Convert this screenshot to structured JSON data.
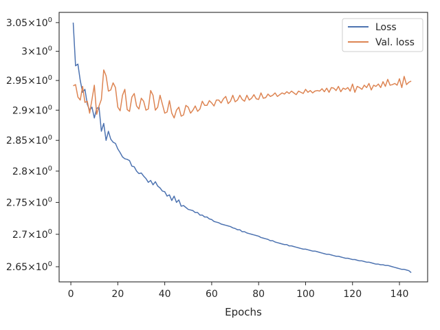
{
  "chart_data": {
    "type": "line",
    "title": "",
    "xlabel": "Epochs",
    "ylabel": "",
    "yscale": "log",
    "xlim": [
      -5,
      152
    ],
    "ylim": [
      2.627,
      3.068
    ],
    "grid": false,
    "legend_position": "top-right",
    "x_ticks": [
      0,
      20,
      40,
      60,
      80,
      100,
      120,
      140
    ],
    "x_tick_labels": [
      "0",
      "20",
      "40",
      "60",
      "80",
      "100",
      "120",
      "140"
    ],
    "y_ticks": [
      2.65,
      2.7,
      2.75,
      2.8,
      2.85,
      2.9,
      2.95,
      3.0,
      3.05
    ],
    "y_tick_mantissas": [
      "2.65",
      "2.7",
      "2.75",
      "2.8",
      "2.85",
      "2.9",
      "2.95",
      "3",
      "3.05"
    ],
    "y_tick_times": "×",
    "y_tick_base": "10",
    "y_tick_exponent": "0",
    "series": [
      {
        "name": "Loss",
        "color": "#4c72b0",
        "x_start": 1,
        "x_step": 1,
        "values": [
          3.05,
          2.975,
          2.978,
          2.95,
          2.93,
          2.935,
          2.91,
          2.9,
          2.905,
          2.887,
          2.903,
          2.905,
          2.865,
          2.878,
          2.85,
          2.865,
          2.852,
          2.847,
          2.845,
          2.836,
          2.83,
          2.823,
          2.82,
          2.819,
          2.817,
          2.808,
          2.807,
          2.8,
          2.796,
          2.797,
          2.792,
          2.788,
          2.782,
          2.785,
          2.778,
          2.783,
          2.776,
          2.773,
          2.768,
          2.767,
          2.76,
          2.762,
          2.753,
          2.76,
          2.75,
          2.754,
          2.744,
          2.745,
          2.742,
          2.739,
          2.738,
          2.737,
          2.734,
          2.734,
          2.73,
          2.73,
          2.727,
          2.727,
          2.724,
          2.723,
          2.72,
          2.719,
          2.718,
          2.716,
          2.715,
          2.714,
          2.713,
          2.712,
          2.71,
          2.709,
          2.707,
          2.707,
          2.704,
          2.704,
          2.702,
          2.701,
          2.7,
          2.699,
          2.698,
          2.697,
          2.695,
          2.694,
          2.693,
          2.692,
          2.69,
          2.69,
          2.688,
          2.687,
          2.686,
          2.685,
          2.684,
          2.684,
          2.682,
          2.682,
          2.681,
          2.68,
          2.679,
          2.678,
          2.677,
          2.677,
          2.676,
          2.675,
          2.674,
          2.674,
          2.673,
          2.672,
          2.671,
          2.67,
          2.669,
          2.669,
          2.668,
          2.667,
          2.666,
          2.666,
          2.665,
          2.664,
          2.663,
          2.663,
          2.662,
          2.661,
          2.661,
          2.66,
          2.659,
          2.659,
          2.658,
          2.657,
          2.657,
          2.656,
          2.655,
          2.654,
          2.654,
          2.653,
          2.653,
          2.652,
          2.652,
          2.651,
          2.65,
          2.649,
          2.648,
          2.647,
          2.646,
          2.646,
          2.645,
          2.644,
          2.641
        ]
      },
      {
        "name": "Val. loss",
        "color": "#dd8452",
        "x_start": 1,
        "x_step": 1,
        "values": [
          2.941,
          2.943,
          2.922,
          2.917,
          2.94,
          2.913,
          2.915,
          2.895,
          2.918,
          2.942,
          2.893,
          2.907,
          2.918,
          2.968,
          2.958,
          2.932,
          2.934,
          2.946,
          2.938,
          2.905,
          2.899,
          2.925,
          2.935,
          2.901,
          2.898,
          2.922,
          2.928,
          2.907,
          2.902,
          2.92,
          2.915,
          2.9,
          2.902,
          2.933,
          2.925,
          2.9,
          2.905,
          2.925,
          2.91,
          2.895,
          2.897,
          2.916,
          2.895,
          2.887,
          2.9,
          2.905,
          2.89,
          2.892,
          2.908,
          2.905,
          2.895,
          2.9,
          2.907,
          2.898,
          2.902,
          2.915,
          2.908,
          2.908,
          2.916,
          2.912,
          2.907,
          2.917,
          2.917,
          2.912,
          2.919,
          2.923,
          2.911,
          2.915,
          2.925,
          2.914,
          2.917,
          2.925,
          2.918,
          2.915,
          2.925,
          2.917,
          2.92,
          2.926,
          2.919,
          2.918,
          2.929,
          2.92,
          2.921,
          2.927,
          2.923,
          2.925,
          2.929,
          2.923,
          2.926,
          2.929,
          2.927,
          2.931,
          2.928,
          2.932,
          2.929,
          2.926,
          2.932,
          2.93,
          2.928,
          2.935,
          2.93,
          2.933,
          2.929,
          2.932,
          2.933,
          2.932,
          2.936,
          2.931,
          2.937,
          2.93,
          2.938,
          2.937,
          2.933,
          2.94,
          2.931,
          2.937,
          2.935,
          2.938,
          2.932,
          2.944,
          2.93,
          2.94,
          2.938,
          2.935,
          2.942,
          2.938,
          2.945,
          2.934,
          2.942,
          2.94,
          2.944,
          2.938,
          2.948,
          2.94,
          2.952,
          2.942,
          2.943,
          2.945,
          2.942,
          2.953,
          2.938,
          2.957,
          2.943,
          2.947,
          2.949
        ]
      }
    ]
  }
}
